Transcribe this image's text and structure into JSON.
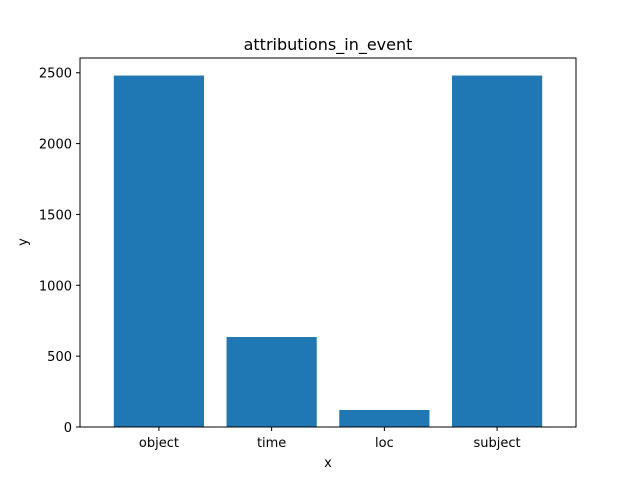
{
  "chart_data": {
    "type": "bar",
    "title": "attributions_in_event",
    "xlabel": "x",
    "ylabel": "y",
    "categories": [
      "object",
      "time",
      "loc",
      "subject"
    ],
    "values": [
      2480,
      635,
      120,
      2480
    ],
    "ylim": [
      0,
      2604
    ],
    "yticks": [
      0,
      500,
      1000,
      1500,
      2000,
      2500
    ],
    "grid": false,
    "bar_color": "#1f77b4",
    "axis_color": "#000000"
  }
}
